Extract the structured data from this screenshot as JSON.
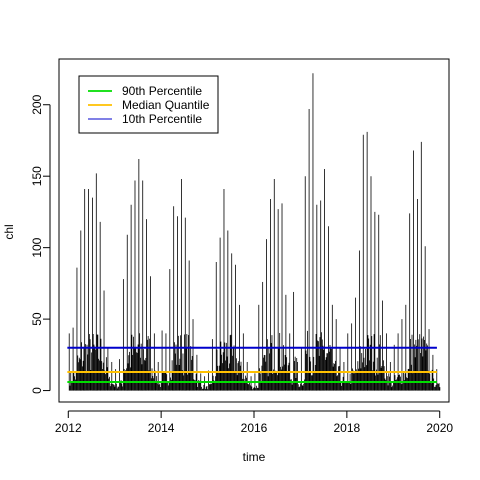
{
  "chart_data": {
    "type": "line",
    "title": "",
    "xlabel": "time",
    "ylabel": "chl",
    "xlim": [
      2011.8,
      2020.2
    ],
    "ylim": [
      -8,
      232
    ],
    "x_ticks": [
      2012,
      2014,
      2016,
      2018,
      2020
    ],
    "x_tick_labels": [
      "2012",
      "2014",
      "2016",
      "2018",
      "2020"
    ],
    "y_ticks": [
      0,
      50,
      100,
      150,
      200
    ],
    "y_tick_labels": [
      "0",
      "50",
      "100",
      "150",
      "200"
    ],
    "grid": false,
    "legend_position": "top-left",
    "spike_series": {
      "name": "",
      "color": "#000000",
      "style": "vertical-lines",
      "peaks": [
        {
          "year": 2012,
          "values": [
            40,
            44,
            86,
            112,
            141,
            141,
            135,
            152,
            118,
            70,
            30,
            20
          ]
        },
        {
          "year": 2013,
          "values": [
            15,
            22,
            78,
            109,
            130,
            147,
            162,
            147,
            120,
            80,
            40,
            20
          ]
        },
        {
          "year": 2014,
          "values": [
            42,
            40,
            85,
            129,
            122,
            148,
            121,
            91,
            50,
            25,
            12,
            10
          ]
        },
        {
          "year": 2015,
          "values": [
            14,
            36,
            90,
            107,
            141,
            112,
            96,
            88,
            60,
            40,
            20,
            10
          ]
        },
        {
          "year": 2016,
          "values": [
            12,
            60,
            76,
            106,
            134,
            148,
            127,
            131,
            67,
            40,
            69,
            20
          ]
        },
        {
          "year": 2017,
          "values": [
            30,
            150,
            197,
            222,
            130,
            133,
            155,
            115,
            60,
            50,
            30,
            20
          ]
        },
        {
          "year": 2018,
          "values": [
            40,
            47,
            65,
            98,
            179,
            181,
            150,
            125,
            123,
            63,
            40,
            20
          ]
        },
        {
          "year": 2019,
          "values": [
            32,
            40,
            50,
            60,
            124,
            168,
            134,
            174,
            101,
            43,
            25,
            15
          ]
        }
      ]
    },
    "reference_lines": [
      {
        "name": "90th Percentile",
        "value": 6,
        "color": "#00dd00"
      },
      {
        "name": "Median Quantile",
        "value": 13,
        "color": "#ffc000"
      },
      {
        "name": "10th Percentile",
        "value": 30,
        "color": "#0000cc"
      }
    ]
  },
  "legend": {
    "items": [
      {
        "label": "90th Percentile",
        "color": "#00dd00"
      },
      {
        "label": "Median Quantile",
        "color": "#ffc000"
      },
      {
        "label": "10th Percentile",
        "color": "#0000cc"
      }
    ]
  }
}
